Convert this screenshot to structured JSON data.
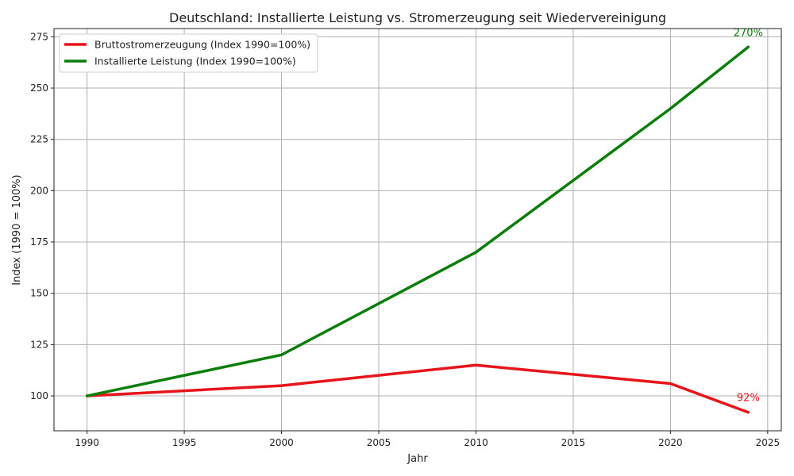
{
  "chart_data": {
    "type": "line",
    "title": "Deutschland: Installierte Leistung vs. Stromerzeugung seit Wiedervereinigung",
    "xlabel": "Jahr",
    "ylabel": "Index (1990 = 100%)",
    "xlim": [
      1988.3,
      2025.7
    ],
    "ylim": [
      83.0,
      279.0
    ],
    "xticks": [
      1990,
      1995,
      2000,
      2005,
      2010,
      2015,
      2020,
      2025
    ],
    "yticks": [
      100,
      125,
      150,
      175,
      200,
      225,
      250,
      275
    ],
    "grid": true,
    "legend_position": "top-left",
    "series": [
      {
        "name": "Bruttostromerzeugung (Index 1990=100%)",
        "color": "#e8141c",
        "x": [
          1990,
          2000,
          2010,
          2020,
          2024
        ],
        "values": [
          100,
          105,
          115,
          106,
          92
        ],
        "end_label": "92%"
      },
      {
        "name": "Installierte Leistung (Index 1990=100%)",
        "color": "#0a7d0a",
        "x": [
          1990,
          2000,
          2010,
          2020,
          2024
        ],
        "values": [
          100,
          120,
          170,
          240,
          270
        ],
        "end_label": "270%"
      }
    ]
  }
}
